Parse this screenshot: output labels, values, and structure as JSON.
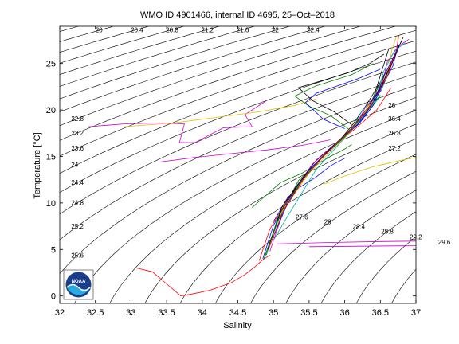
{
  "chart_data": {
    "type": "line",
    "title": "WMO ID 4901466, internal ID 4695, 25–Oct–2018",
    "xlabel": "Salinity",
    "ylabel": "Temperature [°C]",
    "xlim": [
      32,
      37
    ],
    "ylim": [
      -0.8,
      29
    ],
    "xticks": [
      "32",
      "32.5",
      "33",
      "33.5",
      "34",
      "34.5",
      "35",
      "35.5",
      "36",
      "36.5",
      "37"
    ],
    "yticks": [
      "0",
      "5",
      "10",
      "15",
      "20",
      "25"
    ],
    "grid": false,
    "isopycnals": {
      "color": "#000000",
      "labels": [
        "20",
        "20.4",
        "20.8",
        "21.2",
        "21.6",
        "22",
        "22.4",
        "22.8",
        "23.2",
        "23.6",
        "24",
        "24.4",
        "24.8",
        "25.2",
        "25.6",
        "26",
        "26.4",
        "26.8",
        "27.2",
        "27.6",
        "28",
        "28.4",
        "28.8",
        "29.2",
        "29.6"
      ]
    },
    "series": [
      {
        "color": "#ff0000",
        "x": [
          33.08,
          33.3,
          33.5,
          33.7,
          33.85,
          34.1,
          34.4,
          34.6,
          34.75,
          34.85,
          34.95
        ],
        "y": [
          3.0,
          2.6,
          1.3,
          0.0,
          0.2,
          0.6,
          1.4,
          2.3,
          3.2,
          3.9,
          4.4
        ]
      },
      {
        "color": "#cc00cc",
        "x": [
          32.4,
          32.9,
          33.4,
          33.75,
          33.68,
          33.9,
          34.3,
          34.7,
          34.6,
          34.9
        ],
        "y": [
          18.2,
          18.5,
          18.6,
          18.5,
          16.5,
          16.5,
          18.1,
          18.2,
          19.5,
          21.0
        ]
      },
      {
        "color": "#e0c000",
        "x": [
          32.9,
          33.6,
          34.2,
          34.8,
          35.3,
          35.6
        ],
        "y": [
          18.2,
          18.6,
          19.2,
          19.8,
          20.5,
          21.2
        ]
      },
      {
        "color": "#cc00cc",
        "x": [
          33.4,
          33.9,
          34.4,
          34.9,
          35.4,
          35.8
        ],
        "y": [
          14.4,
          14.9,
          15.3,
          15.7,
          16.2,
          16.8
        ]
      },
      {
        "color": "#0000ff",
        "x": [
          35.0,
          35.2,
          35.35,
          35.6,
          35.8,
          36.0
        ],
        "y": [
          8.0,
          10.6,
          11.6,
          12.8,
          14.0,
          14.8
        ]
      },
      {
        "color": "#008000",
        "x": [
          34.7,
          35.1,
          35.4,
          35.6,
          35.8,
          36.0,
          36.1
        ],
        "y": [
          9.5,
          12.2,
          13.2,
          14.1,
          15.0,
          15.8,
          16.3
        ]
      },
      {
        "color": "#e0c000",
        "x": [
          35.7,
          36.0,
          36.4,
          36.8,
          37.0
        ],
        "y": [
          12.0,
          12.9,
          13.9,
          14.6,
          14.9
        ]
      },
      {
        "color": "#cc00cc",
        "x": [
          35.05,
          35.8,
          36.5,
          37.0
        ],
        "y": [
          5.6,
          5.75,
          5.85,
          5.9
        ]
      },
      {
        "color": "#cc00cc",
        "x": [
          35.5,
          36.2,
          37.0
        ],
        "y": [
          5.3,
          5.35,
          5.4
        ]
      },
      {
        "color": "#00aaaa",
        "x": [
          35.0,
          35.2,
          35.6,
          36.0,
          36.3,
          36.5
        ],
        "y": [
          6.0,
          8.6,
          13.6,
          17.0,
          19.5,
          21.5
        ]
      },
      {
        "color": "#000000",
        "x": [
          34.95,
          35.1,
          35.4,
          35.7,
          35.9,
          36.1,
          36.3,
          36.5
        ],
        "y": [
          5.6,
          9.0,
          12.6,
          15.0,
          16.5,
          18.3,
          20.5,
          23.0
        ]
      },
      {
        "color": "#0000ff",
        "x": [
          34.85,
          35.0,
          35.3,
          35.6,
          35.9,
          36.2,
          36.4,
          36.6
        ],
        "y": [
          4.0,
          7.6,
          11.6,
          14.6,
          16.6,
          18.5,
          20.5,
          24.0
        ]
      },
      {
        "color": "#008000",
        "x": [
          34.9,
          35.05,
          35.35,
          35.75,
          36.0,
          36.25,
          36.5
        ],
        "y": [
          4.4,
          8.2,
          12.4,
          15.4,
          17.2,
          19.2,
          21.6
        ]
      },
      {
        "color": "#ff0000",
        "x": [
          34.8,
          34.95,
          35.25,
          35.55,
          35.85,
          36.15,
          36.45,
          36.65
        ],
        "y": [
          3.8,
          7.2,
          11.0,
          14.2,
          16.2,
          18.0,
          20.0,
          22.4
        ]
      },
      {
        "color": "#cc00cc",
        "x": [
          34.95,
          35.15,
          35.45,
          35.8,
          36.05,
          36.3,
          36.55
        ],
        "y": [
          4.8,
          9.4,
          13.0,
          15.8,
          17.6,
          19.6,
          23.8
        ]
      },
      {
        "color": "#e0c000",
        "x": [
          34.9,
          35.1,
          35.5,
          35.85,
          36.1,
          36.35,
          36.6
        ],
        "y": [
          4.6,
          8.8,
          13.2,
          15.9,
          17.8,
          20.2,
          24.4
        ]
      },
      {
        "color": "#00aaaa",
        "x": [
          34.88,
          35.08,
          35.42,
          35.78,
          36.02,
          36.28,
          36.52,
          36.7
        ],
        "y": [
          4.2,
          8.4,
          12.8,
          15.6,
          17.4,
          19.4,
          22.2,
          25.8
        ]
      },
      {
        "color": "#000000",
        "x": [
          34.92,
          35.12,
          35.48,
          35.82,
          36.08,
          36.38,
          36.62
        ],
        "y": [
          5.0,
          9.6,
          13.4,
          16.0,
          17.9,
          20.8,
          26.6
        ]
      },
      {
        "color": "#0000ff",
        "x": [
          35.0,
          35.2,
          35.5,
          35.9,
          36.2,
          36.45,
          36.68,
          36.75
        ],
        "y": [
          6.4,
          10.0,
          13.6,
          16.4,
          18.6,
          21.4,
          24.8,
          27.2
        ]
      },
      {
        "color": "#008000",
        "x": [
          34.86,
          35.04,
          35.38,
          35.72,
          36.0,
          36.3,
          36.58
        ],
        "y": [
          3.9,
          7.8,
          12.2,
          15.2,
          17.1,
          19.8,
          24.2
        ]
      },
      {
        "color": "#ff0000",
        "x": [
          34.94,
          35.14,
          35.46,
          35.8,
          36.06,
          36.34,
          36.6,
          36.72
        ],
        "y": [
          5.2,
          9.2,
          13.0,
          15.8,
          17.7,
          20.2,
          23.6,
          26.2
        ]
      },
      {
        "color": "#008000",
        "x": [
          36.08,
          35.8,
          35.5,
          35.3,
          35.6,
          36.1,
          36.4
        ],
        "y": [
          17.8,
          19.4,
          20.4,
          21.5,
          22.6,
          23.8,
          25.0
        ]
      },
      {
        "color": "#0000ff",
        "x": [
          36.0,
          35.7,
          35.45,
          35.6,
          35.9,
          36.2,
          36.5
        ],
        "y": [
          18.0,
          19.0,
          20.8,
          21.8,
          22.6,
          23.4,
          24.4
        ]
      },
      {
        "color": "#000000",
        "x": [
          36.1,
          35.85,
          35.55,
          35.35,
          35.7,
          36.05,
          36.35,
          36.55
        ],
        "y": [
          18.4,
          19.8,
          21.0,
          22.4,
          23.2,
          24.0,
          25.0,
          26.0
        ]
      },
      {
        "color": "#cc00cc",
        "x": [
          36.2,
          36.3,
          36.5,
          36.6,
          36.75,
          36.9
        ],
        "y": [
          19.0,
          20.4,
          22.0,
          25.2,
          26.8,
          27.6
        ]
      },
      {
        "color": "#00aaaa",
        "x": [
          36.15,
          36.25,
          36.45,
          36.55,
          36.7,
          36.85
        ],
        "y": [
          18.6,
          20.0,
          21.6,
          24.2,
          26.4,
          27.2
        ]
      },
      {
        "color": "#e0c000",
        "x": [
          36.25,
          36.4,
          36.5,
          36.62,
          36.66,
          36.72
        ],
        "y": [
          19.6,
          21.0,
          22.4,
          24.6,
          26.4,
          27.8
        ]
      },
      {
        "color": "#ff0000",
        "x": [
          36.3,
          36.45,
          36.55,
          36.65,
          36.72,
          36.76
        ],
        "y": [
          20.2,
          21.8,
          23.2,
          25.0,
          26.2,
          28.0
        ]
      },
      {
        "color": "#0000ff",
        "x": [
          36.35,
          36.48,
          36.56,
          36.68,
          36.74,
          36.8
        ],
        "y": [
          20.6,
          22.2,
          23.8,
          25.6,
          26.6,
          27.4
        ]
      },
      {
        "color": "#000000",
        "x": [
          36.4,
          36.52,
          36.6,
          36.7,
          36.76,
          36.82
        ],
        "y": [
          21.0,
          22.6,
          24.0,
          25.6,
          26.8,
          27.8
        ]
      }
    ]
  },
  "logo": {
    "text": "NOAA"
  }
}
